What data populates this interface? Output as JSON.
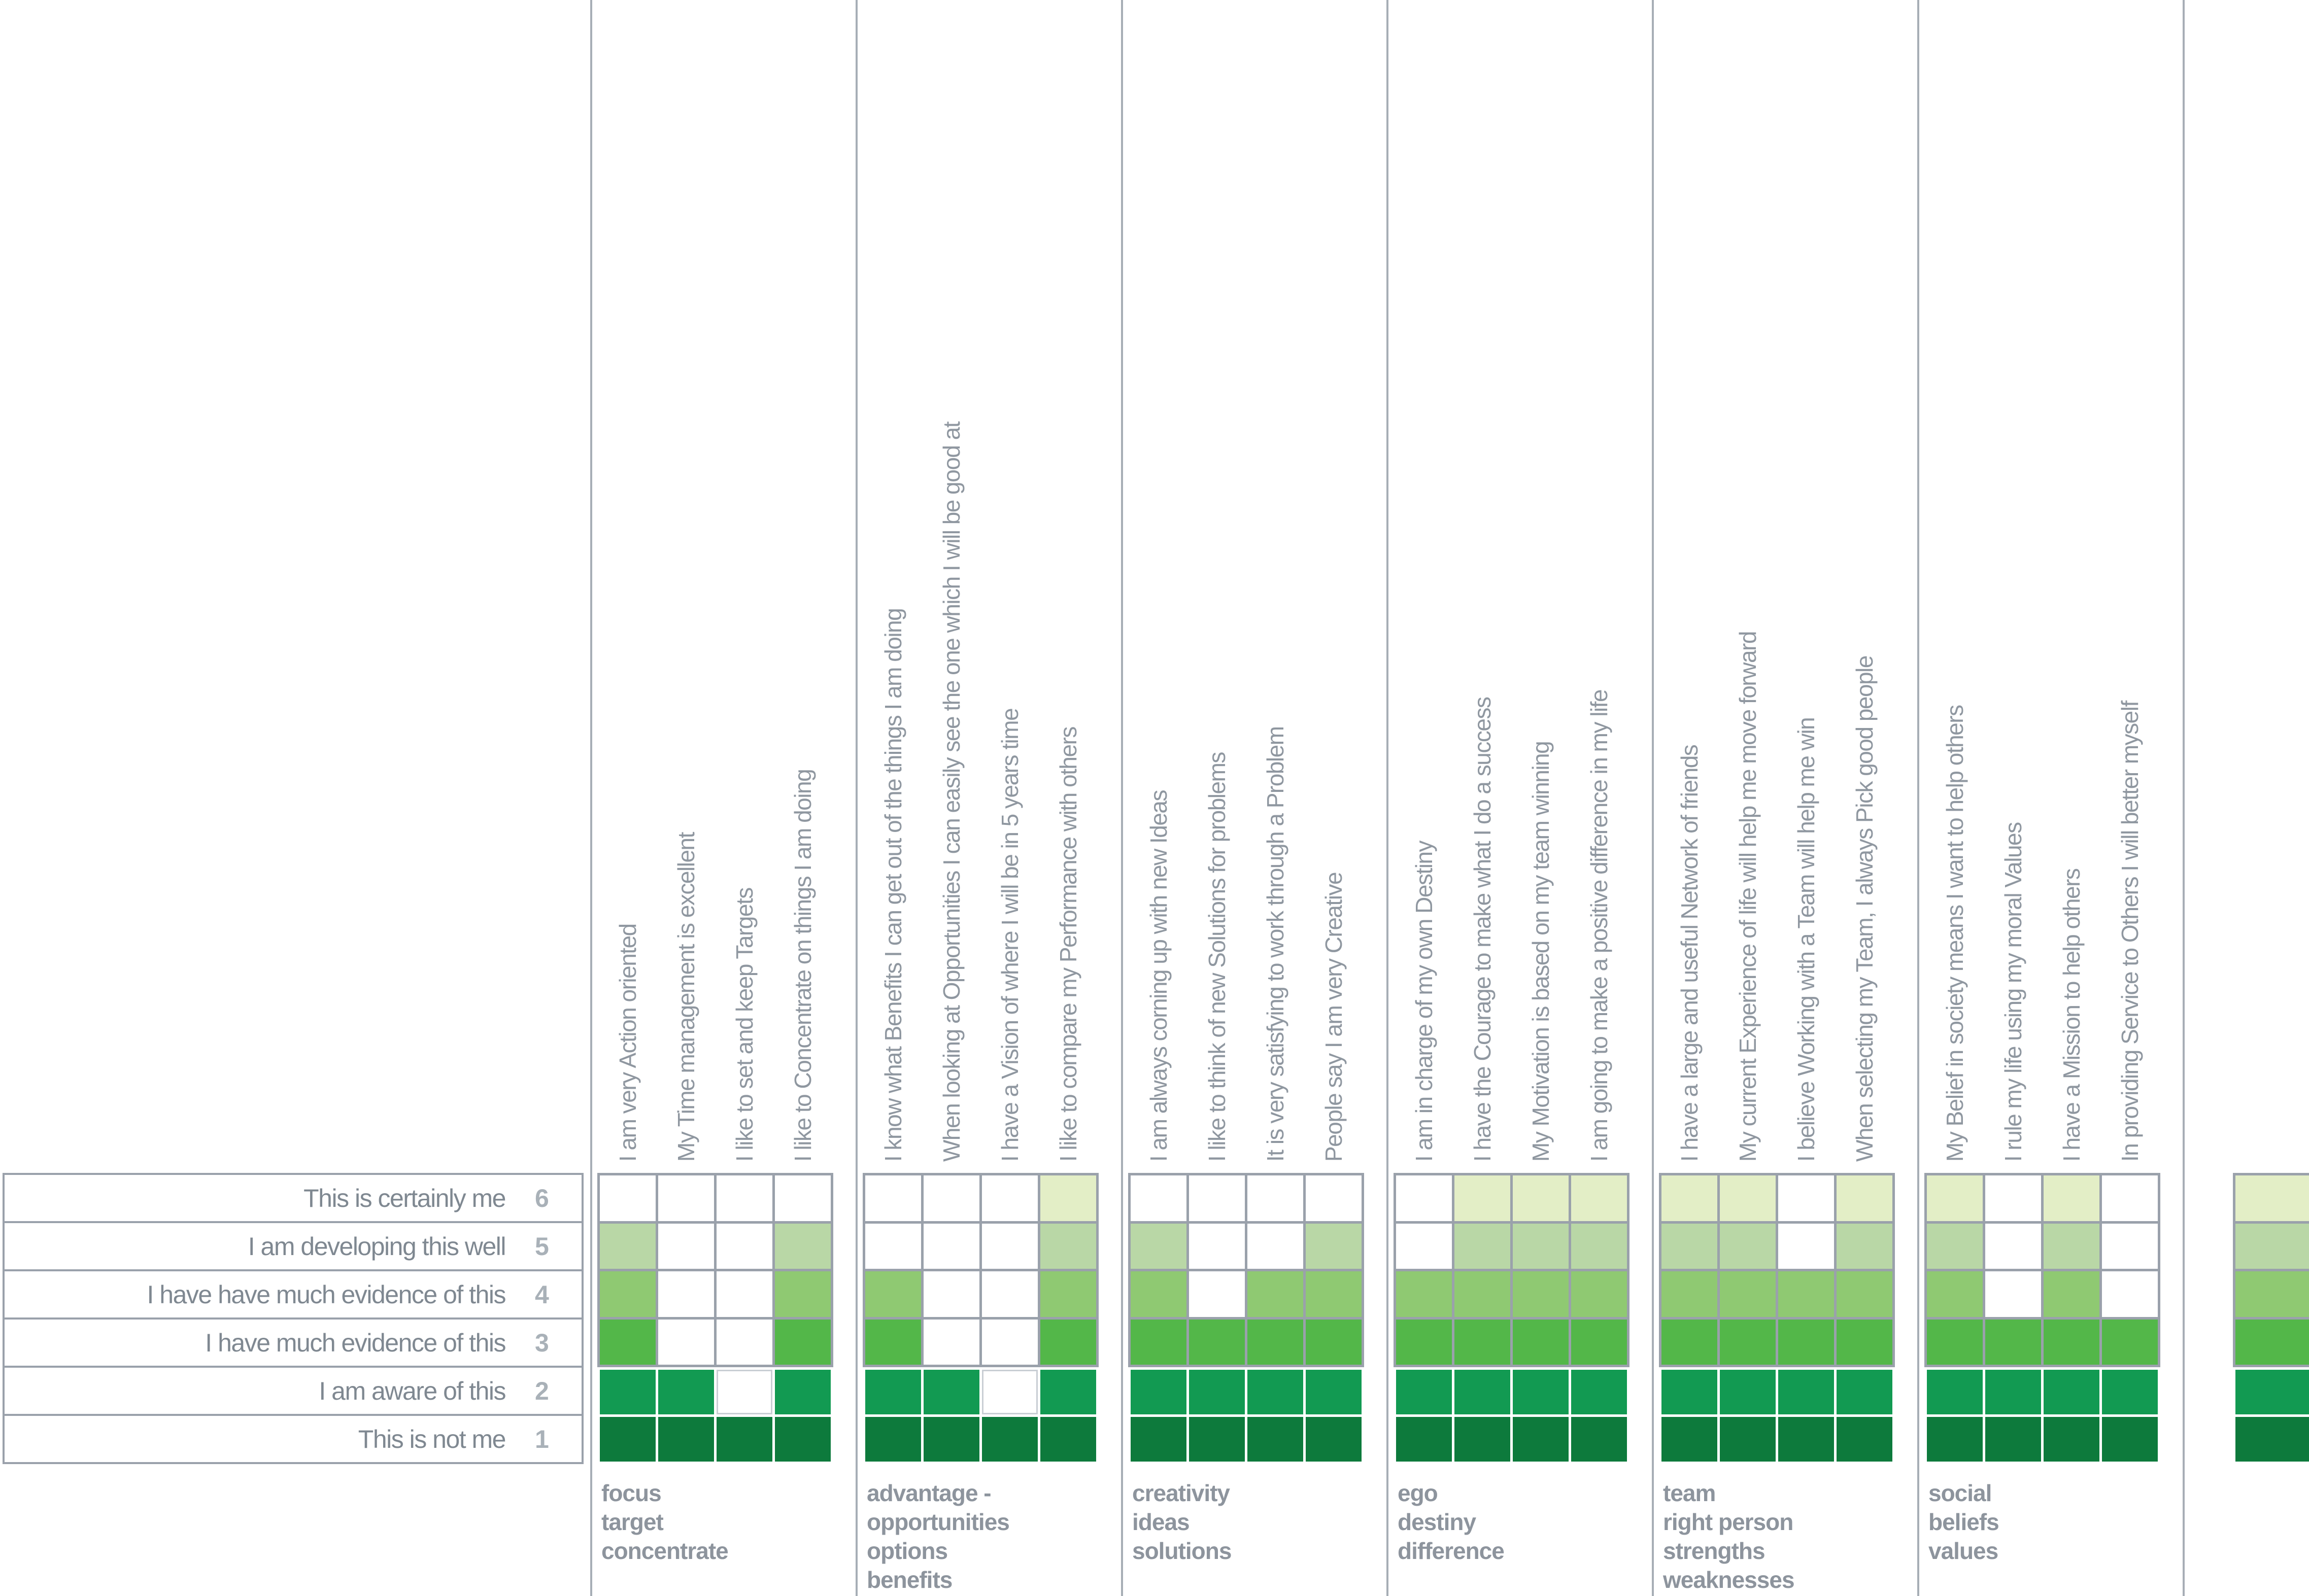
{
  "palette": {
    "level_colors": {
      "1": "#0d7a3c",
      "2": "#129a52",
      "3": "#53b749",
      "4": "#8fc972",
      "5": "#b9d7a6",
      "6": "#e3eec6"
    },
    "grid_line": "#9aa1ab",
    "separator_line": "#a7aeb6",
    "empty_cell_border": "#c9ced4",
    "statement_text": "#8f97a0",
    "legend_text": "#7f8891",
    "legend_number": "#a9b1b8",
    "footer_text": "#8d949d"
  },
  "chart_data": {
    "type": "heatmap",
    "title": "",
    "legend_position": "left",
    "value_range": [
      1,
      6
    ],
    "scale": [
      {
        "score": "6",
        "label": "This is certainly me"
      },
      {
        "score": "5",
        "label": "I am developing this well"
      },
      {
        "score": "4",
        "label": "I have have much evidence of this"
      },
      {
        "score": "3",
        "label": "I have much evidence of this"
      },
      {
        "score": "2",
        "label": "I am aware of this"
      },
      {
        "score": "1",
        "label": "This is not me"
      }
    ],
    "groups": [
      {
        "title_lines": [
          "focus",
          "target",
          "concentrate"
        ],
        "items": [
          {
            "statement": "I am very Action oriented",
            "score": 5
          },
          {
            "statement": "My Time management is excellent",
            "score": 2
          },
          {
            "statement": "I like to set and keep Targets",
            "score": 1
          },
          {
            "statement": "I like to Concentrate on things I am doing",
            "score": 5
          }
        ]
      },
      {
        "title_lines": [
          "advantage -",
          "opportunities",
          "options",
          "benefits"
        ],
        "items": [
          {
            "statement": "I know what Benefits I can get out of the things I am doing",
            "score": 4
          },
          {
            "statement": "When looking at Opportunities I can easily see the one which I will be good at",
            "score": 2
          },
          {
            "statement": "I have a Vision of where I will be in 5 years time",
            "score": 1
          },
          {
            "statement": "I like to compare my Performance with others",
            "score": 6
          }
        ]
      },
      {
        "title_lines": [
          "creativity",
          "ideas",
          "solutions"
        ],
        "items": [
          {
            "statement": "I am always corning up with new Ideas",
            "score": 5
          },
          {
            "statement": "I like to think of new Solutions for problems",
            "score": 3
          },
          {
            "statement": "It is very satisfying to work through a Problem",
            "score": 4
          },
          {
            "statement": "People say I am very Creative",
            "score": 5
          }
        ]
      },
      {
        "title_lines": [
          "ego",
          "destiny",
          "difference"
        ],
        "items": [
          {
            "statement": "I am in charge of my own Destiny",
            "score": 4
          },
          {
            "statement": "I have the Courage to make what I do a success",
            "score": 6
          },
          {
            "statement": "My Motivation is based on my team winning",
            "score": 6
          },
          {
            "statement": "I am going to make a positive difference in my life",
            "score": 6
          }
        ]
      },
      {
        "title_lines": [
          "team",
          "right person",
          "strengths",
          "weaknesses"
        ],
        "items": [
          {
            "statement": "I have a large and useful Network of friends",
            "score": 6
          },
          {
            "statement": "My current Experience of life will help me move forward",
            "score": 6
          },
          {
            "statement": "I believe Working with a Team will help me win",
            "score": 4
          },
          {
            "statement": "When selecting my Team, I always Pick good people",
            "score": 6
          }
        ]
      },
      {
        "title_lines": [
          "social",
          "beliefs",
          "values"
        ],
        "items": [
          {
            "statement": "My Belief in society means I want to help others",
            "score": 6
          },
          {
            "statement": "I rule my life using my moral Values",
            "score": 3
          },
          {
            "statement": "I have a Mission to help others",
            "score": 6
          },
          {
            "statement": "In providing Service to Others I will better myself",
            "score": 3
          }
        ]
      },
      {
        "partial": true,
        "title_lines": [],
        "items": [
          {
            "statement": "",
            "score": 6
          }
        ]
      }
    ]
  }
}
